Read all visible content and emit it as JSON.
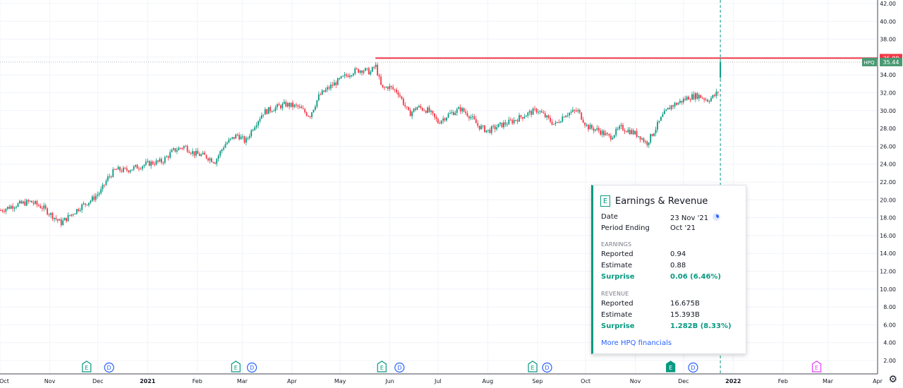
{
  "chart_data": {
    "type": "candlestick",
    "symbol": "HPQ",
    "y_range": [
      1,
      42.5
    ],
    "y_ticks": [
      "42.00",
      "40.00",
      "38.00",
      "36.00",
      "34.00",
      "32.00",
      "30.00",
      "28.00",
      "26.00",
      "24.00",
      "22.00",
      "20.00",
      "18.00",
      "16.00",
      "14.00",
      "12.00",
      "10.00",
      "8.00",
      "6.00",
      "4.00",
      "2.00"
    ],
    "x_ticks": [
      "Oct",
      "Nov",
      "Dec",
      "2021",
      "Feb",
      "Mar",
      "Apr",
      "May",
      "Jun",
      "Jul",
      "Aug",
      "Sep",
      "Oct",
      "Nov",
      "Dec",
      "2022",
      "Feb",
      "Mar",
      "Apr"
    ],
    "last_price": "35.44",
    "level_price": "35.88",
    "level_value": 35.88,
    "last_value": 35.44,
    "price_path": [
      [
        "2020-10-01",
        18.8
      ],
      [
        "2020-10-10",
        19.4
      ],
      [
        "2020-10-20",
        19.8
      ],
      [
        "2020-10-28",
        19.1
      ],
      [
        "2020-11-04",
        18.0
      ],
      [
        "2020-11-08",
        17.4
      ],
      [
        "2020-11-14",
        18.3
      ],
      [
        "2020-11-20",
        19.2
      ],
      [
        "2020-11-27",
        20.0
      ],
      [
        "2020-12-03",
        21.0
      ],
      [
        "2020-12-07",
        22.4
      ],
      [
        "2020-12-12",
        23.4
      ],
      [
        "2020-12-18",
        23.3
      ],
      [
        "2020-12-24",
        23.6
      ],
      [
        "2021-01-02",
        24.1
      ],
      [
        "2021-01-10",
        24.3
      ],
      [
        "2021-01-17",
        25.5
      ],
      [
        "2021-01-24",
        26.0
      ],
      [
        "2021-01-30",
        25.2
      ],
      [
        "2021-02-06",
        24.9
      ],
      [
        "2021-02-12",
        24.3
      ],
      [
        "2021-02-18",
        26.2
      ],
      [
        "2021-02-26",
        27.3
      ],
      [
        "2021-03-03",
        26.5
      ],
      [
        "2021-03-08",
        28.2
      ],
      [
        "2021-03-14",
        29.8
      ],
      [
        "2021-03-21",
        30.3
      ],
      [
        "2021-03-28",
        30.7
      ],
      [
        "2021-04-05",
        30.4
      ],
      [
        "2021-04-12",
        29.4
      ],
      [
        "2021-04-18",
        31.7
      ],
      [
        "2021-04-25",
        32.7
      ],
      [
        "2021-05-02",
        33.6
      ],
      [
        "2021-05-09",
        34.4
      ],
      [
        "2021-05-15",
        34.6
      ],
      [
        "2021-05-20",
        34.3
      ],
      [
        "2021-05-23",
        35.1
      ],
      [
        "2021-05-27",
        32.4
      ],
      [
        "2021-05-31",
        32.7
      ],
      [
        "2021-06-06",
        32.1
      ],
      [
        "2021-06-13",
        29.6
      ],
      [
        "2021-06-18",
        30.4
      ],
      [
        "2021-06-25",
        30.0
      ],
      [
        "2021-07-01",
        28.7
      ],
      [
        "2021-07-08",
        29.6
      ],
      [
        "2021-07-15",
        30.2
      ],
      [
        "2021-07-21",
        29.4
      ],
      [
        "2021-07-26",
        28.3
      ],
      [
        "2021-08-01",
        27.7
      ],
      [
        "2021-08-08",
        28.3
      ],
      [
        "2021-08-16",
        28.8
      ],
      [
        "2021-08-24",
        29.5
      ],
      [
        "2021-09-01",
        30.1
      ],
      [
        "2021-09-06",
        29.3
      ],
      [
        "2021-09-12",
        28.4
      ],
      [
        "2021-09-18",
        29.6
      ],
      [
        "2021-09-26",
        30.0
      ],
      [
        "2021-10-02",
        28.2
      ],
      [
        "2021-10-09",
        27.8
      ],
      [
        "2021-10-16",
        27.0
      ],
      [
        "2021-10-23",
        28.1
      ],
      [
        "2021-10-30",
        27.6
      ],
      [
        "2021-11-04",
        27.1
      ],
      [
        "2021-11-08",
        26.3
      ],
      [
        "2021-11-13",
        27.8
      ],
      [
        "2021-11-18",
        29.4
      ],
      [
        "2021-11-23",
        30.5
      ],
      [
        "2021-11-28",
        30.9
      ],
      [
        "2021-12-04",
        31.5
      ],
      [
        "2021-12-10",
        31.7
      ],
      [
        "2021-12-16",
        31.2
      ],
      [
        "2021-12-20",
        31.6
      ],
      [
        "2021-12-23",
        32.2
      ]
    ],
    "last_candle": {
      "date": "2021-12-24",
      "open": 33.7,
      "high": 35.88,
      "low": 33.5,
      "close": 35.44
    },
    "level_start": "2021-05-23",
    "crosshair_date": "2021-12-24",
    "event_markers": [
      {
        "type": "E",
        "date": "2020-11-24",
        "color": "#089981",
        "filled": false
      },
      {
        "type": "D",
        "date": "2020-12-08",
        "color": "#2962ff",
        "filled": false
      },
      {
        "type": "E",
        "date": "2021-02-25",
        "color": "#089981",
        "filled": false
      },
      {
        "type": "D",
        "date": "2021-03-07",
        "color": "#2962ff",
        "filled": false
      },
      {
        "type": "E",
        "date": "2021-05-27",
        "color": "#089981",
        "filled": false
      },
      {
        "type": "D",
        "date": "2021-06-07",
        "color": "#2962ff",
        "filled": false
      },
      {
        "type": "E",
        "date": "2021-08-29",
        "color": "#089981",
        "filled": false
      },
      {
        "type": "D",
        "date": "2021-09-07",
        "color": "#2962ff",
        "filled": false
      },
      {
        "type": "E",
        "date": "2021-11-23",
        "color": "#089981",
        "filled": true
      },
      {
        "type": "D",
        "date": "2021-12-07",
        "color": "#2962ff",
        "filled": false
      },
      {
        "type": "E",
        "date": "2022-02-22",
        "color": "#e040fb",
        "filled": false
      }
    ],
    "colors": {
      "up": "#089981",
      "down": "#f23645",
      "level": "#f23645",
      "crosshair": "#089981",
      "grid": "#f0f3fa"
    }
  },
  "popup": {
    "title": "Earnings & Revenue",
    "icon": "E",
    "date_label": "Date",
    "date_value": "23 Nov '21",
    "period_label": "Period Ending",
    "period_value": "Oct '21",
    "earnings_header": "EARNINGS",
    "e_reported_label": "Reported",
    "e_reported_value": "0.94",
    "e_estimate_label": "Estimate",
    "e_estimate_value": "0.88",
    "e_surprise_label": "Surprise",
    "e_surprise_value": "0.06 (6.46%)",
    "revenue_header": "REVENUE",
    "r_reported_label": "Reported",
    "r_reported_value": "16.675B",
    "r_estimate_label": "Estimate",
    "r_estimate_value": "15.393B",
    "r_surprise_label": "Surprise",
    "r_surprise_value": "1.282B (8.33%)",
    "link_label": "More HPQ financials"
  }
}
